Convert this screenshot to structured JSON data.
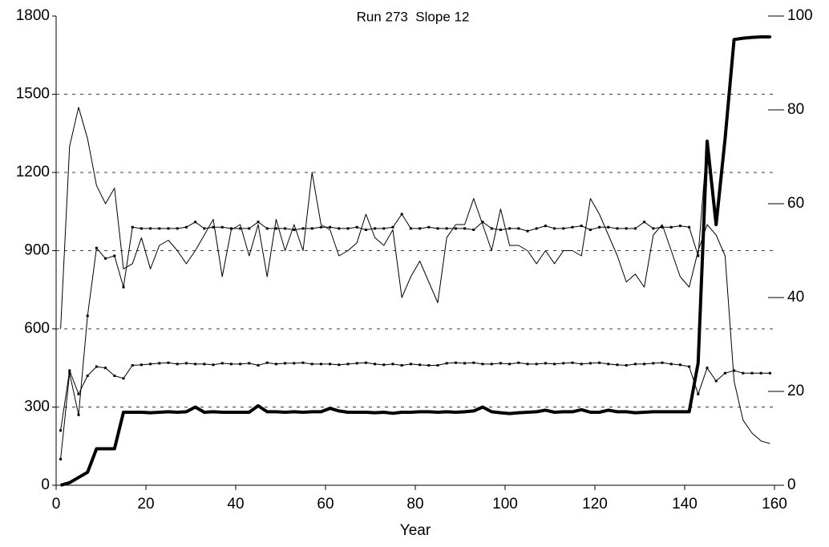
{
  "chart_data": {
    "type": "line",
    "title": "Run 273  Slope 12",
    "x_label": "Year",
    "x": [
      1,
      3,
      5,
      7,
      9,
      11,
      13,
      15,
      17,
      19,
      21,
      23,
      25,
      27,
      29,
      31,
      33,
      35,
      37,
      39,
      41,
      43,
      45,
      47,
      49,
      51,
      53,
      55,
      57,
      59,
      61,
      63,
      65,
      67,
      69,
      71,
      73,
      75,
      77,
      79,
      81,
      83,
      85,
      87,
      89,
      91,
      93,
      95,
      97,
      99,
      101,
      103,
      105,
      107,
      109,
      111,
      113,
      115,
      117,
      119,
      121,
      123,
      125,
      127,
      129,
      131,
      133,
      135,
      137,
      139,
      141,
      143,
      145,
      147,
      149,
      151,
      153,
      155,
      157,
      159
    ],
    "series": [
      {
        "color": "#000000",
        "width": 4,
        "marker": false,
        "values": [
          0,
          10,
          30,
          50,
          140,
          140,
          140,
          280,
          280,
          280,
          278,
          280,
          282,
          280,
          282,
          300,
          280,
          282,
          280,
          280,
          280,
          280,
          305,
          282,
          282,
          280,
          282,
          280,
          282,
          282,
          295,
          285,
          280,
          280,
          280,
          278,
          280,
          276,
          280,
          280,
          282,
          282,
          280,
          282,
          280,
          282,
          285,
          300,
          282,
          278,
          275,
          278,
          280,
          282,
          288,
          280,
          282,
          282,
          290,
          280,
          280,
          288,
          282,
          282,
          278,
          280,
          282,
          282,
          282,
          282,
          282,
          470,
          1320,
          1000,
          1330,
          1710,
          1715,
          1718,
          1720,
          1720
        ]
      },
      {
        "color": "#000000",
        "width": 1,
        "marker": false,
        "values": [
          600,
          1300,
          1450,
          1330,
          1150,
          1080,
          1140,
          830,
          850,
          950,
          830,
          920,
          940,
          900,
          850,
          900,
          960,
          1020,
          800,
          980,
          1000,
          880,
          1000,
          800,
          1020,
          900,
          1000,
          900,
          1200,
          1000,
          980,
          880,
          900,
          930,
          1040,
          950,
          920,
          980,
          720,
          800,
          860,
          780,
          700,
          950,
          1000,
          1000,
          1100,
          1000,
          900,
          1060,
          920,
          920,
          900,
          850,
          900,
          850,
          900,
          900,
          880,
          1100,
          1040,
          960,
          880,
          780,
          810,
          760,
          960,
          1000,
          900,
          800,
          760,
          900,
          1000,
          960,
          880,
          400,
          250,
          200,
          170,
          160
        ]
      },
      {
        "color": "#000000",
        "width": 1,
        "marker": true,
        "values": [
          100,
          430,
          270,
          650,
          910,
          870,
          880,
          760,
          990,
          985,
          985,
          985,
          985,
          985,
          990,
          1010,
          985,
          990,
          990,
          985,
          985,
          985,
          1010,
          985,
          985,
          985,
          980,
          985,
          985,
          990,
          990,
          985,
          985,
          990,
          980,
          985,
          985,
          990,
          1040,
          985,
          985,
          990,
          985,
          985,
          985,
          985,
          980,
          1010,
          985,
          980,
          985,
          985,
          975,
          985,
          995,
          985,
          985,
          990,
          995,
          980,
          990,
          990,
          985,
          985,
          985,
          1010,
          985,
          990,
          990,
          995,
          990,
          880,
          1320,
          1000,
          1330,
          1710,
          1715,
          1718,
          1720,
          1720
        ]
      },
      {
        "color": "#000000",
        "width": 1,
        "marker": true,
        "values": [
          210,
          440,
          350,
          420,
          455,
          450,
          420,
          410,
          460,
          462,
          465,
          468,
          470,
          465,
          468,
          465,
          465,
          462,
          468,
          465,
          465,
          468,
          460,
          470,
          465,
          468,
          468,
          470,
          465,
          465,
          465,
          462,
          465,
          468,
          470,
          465,
          462,
          465,
          460,
          465,
          462,
          460,
          460,
          468,
          470,
          468,
          470,
          465,
          465,
          468,
          465,
          470,
          465,
          465,
          468,
          465,
          468,
          470,
          465,
          468,
          470,
          465,
          462,
          460,
          465,
          465,
          468,
          470,
          465,
          462,
          455,
          350,
          450,
          400,
          430,
          440,
          430,
          430,
          430,
          430
        ]
      }
    ],
    "xlim": [
      0,
      160
    ],
    "xticks": [
      0,
      20,
      40,
      60,
      80,
      100,
      120,
      140,
      160
    ],
    "ylim": [
      0,
      1800
    ],
    "yticks": [
      0,
      300,
      600,
      900,
      1200,
      1500,
      1800
    ],
    "y2lim": [
      0,
      100
    ],
    "y2ticks": [
      0,
      20,
      40,
      60,
      80,
      100
    ],
    "grid": true
  }
}
